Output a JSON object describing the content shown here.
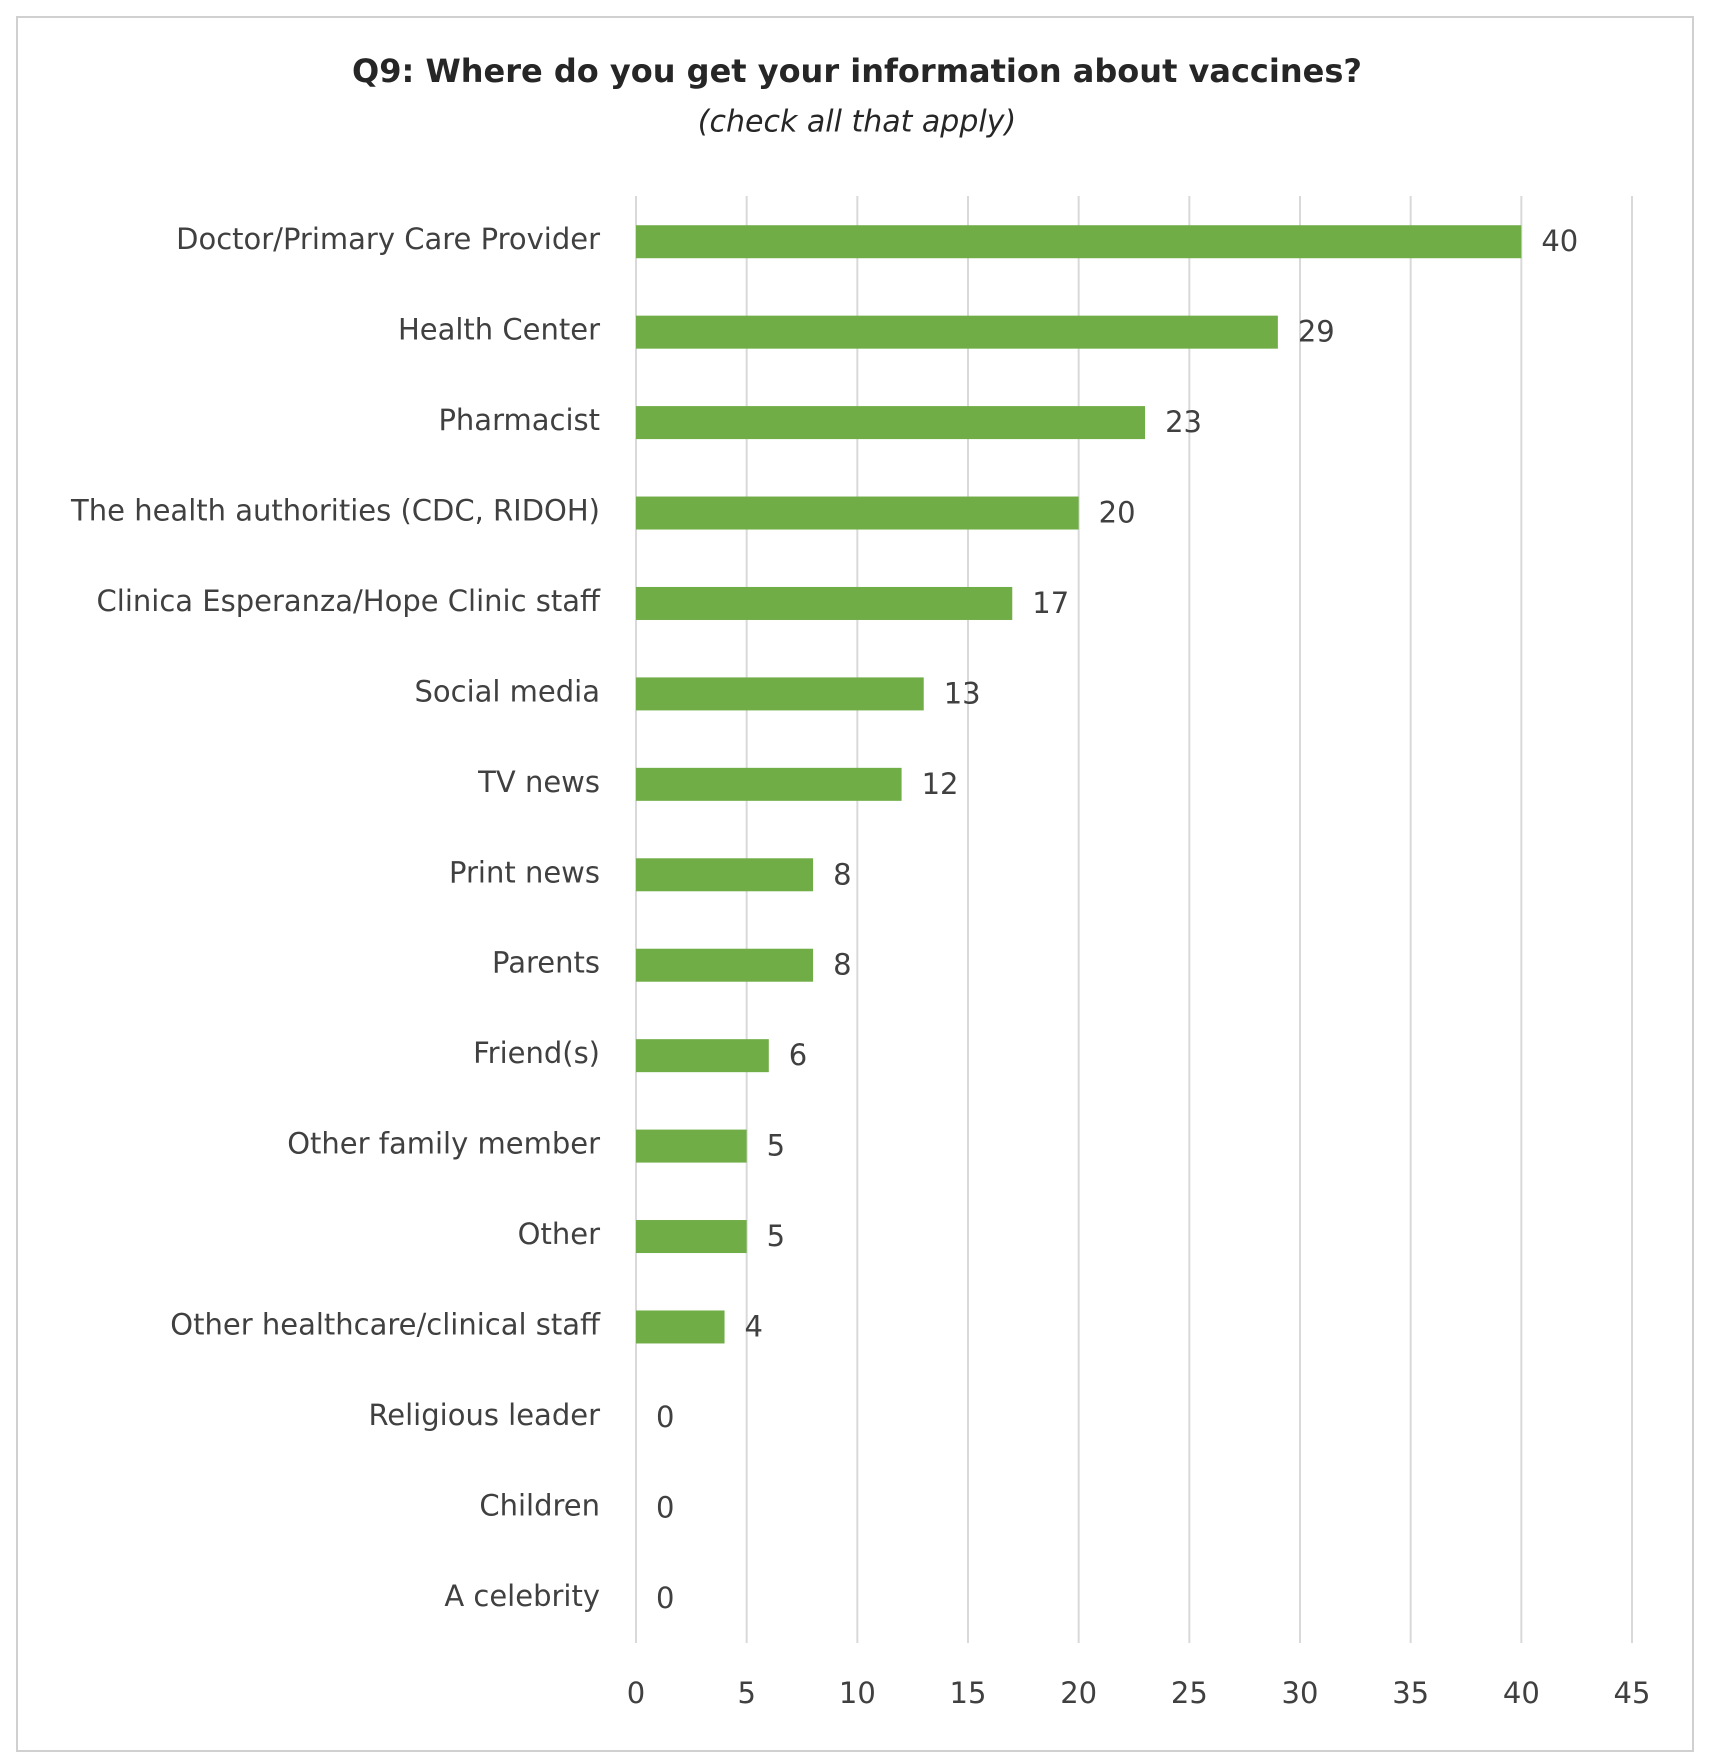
{
  "chart_data": {
    "type": "hbar",
    "title": "Q9: Where do you get your information about vaccines?",
    "subtitle": "(check all that apply)",
    "categories": [
      "Doctor/Primary Care Provider",
      "Health Center",
      "Pharmacist",
      "The health authorities (CDC, RIDOH)",
      "Clinica Esperanza/Hope Clinic staff",
      "Social media",
      "TV news",
      "Print news",
      "Parents",
      "Friend(s)",
      "Other family member",
      "Other",
      "Other healthcare/clinical staff",
      "Religious leader",
      "Children",
      "A celebrity"
    ],
    "values": [
      40,
      29,
      23,
      20,
      17,
      13,
      12,
      8,
      8,
      6,
      5,
      5,
      4,
      0,
      0,
      0
    ],
    "color": "#70ad47",
    "xlim": [
      0,
      45
    ],
    "xticks": [
      0,
      5,
      10,
      15,
      20,
      25,
      30,
      35,
      40,
      45
    ],
    "grid": true
  }
}
